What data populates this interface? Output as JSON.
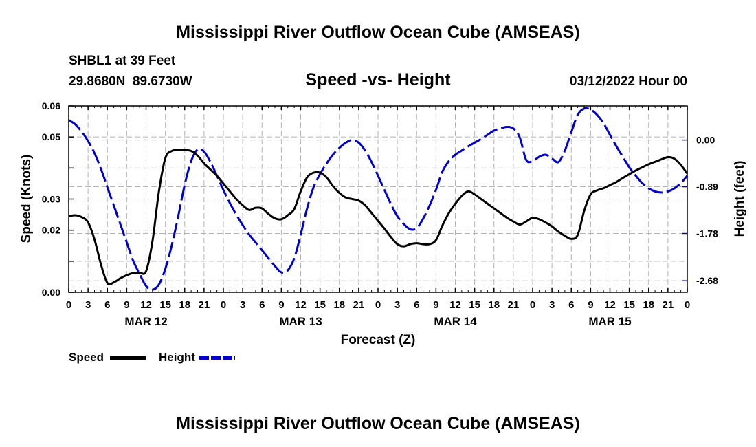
{
  "chart_data": {
    "type": "line",
    "title": "Mississippi River Outflow Ocean Cube (AMSEAS)",
    "footer_title": "Mississippi River Outflow Ocean Cube (AMSEAS)",
    "station": "SHBL1 at 39 Feet",
    "location": "29.8680N  89.6730W",
    "subtitle": "Speed -vs- Height",
    "run_label": "03/12/2022 Hour 00",
    "xlabel": "Forecast (Z)",
    "ylabel_left": "Speed (Knots)",
    "ylabel_right": "Height (feet)",
    "xlim": [
      0,
      96
    ],
    "ylim_left": [
      0.0,
      0.06
    ],
    "ylim_right": [
      -2.9,
      0.65
    ],
    "left_ticks": [
      {
        "v": 0.0,
        "label": "0.00"
      },
      {
        "v": 0.01,
        "label": ""
      },
      {
        "v": 0.02,
        "label": "0.02"
      },
      {
        "v": 0.03,
        "label": "0.03"
      },
      {
        "v": 0.04,
        "label": ""
      },
      {
        "v": 0.05,
        "label": "0.05"
      },
      {
        "v": 0.06,
        "label": "0.06"
      }
    ],
    "right_ticks": [
      {
        "v": 0.0,
        "label": "0.00"
      },
      {
        "v": -0.89,
        "label": "-0.89"
      },
      {
        "v": -1.78,
        "label": "-1.78"
      },
      {
        "v": -2.68,
        "label": "-2.68"
      }
    ],
    "x_tick_labels": [
      "0",
      "3",
      "6",
      "9",
      "12",
      "15",
      "18",
      "21",
      "0",
      "3",
      "6",
      "9",
      "12",
      "15",
      "18",
      "21",
      "0",
      "3",
      "6",
      "9",
      "12",
      "15",
      "18",
      "21",
      "0",
      "3",
      "6",
      "9",
      "12",
      "15",
      "18",
      "21",
      "0"
    ],
    "day_labels": [
      {
        "hour": 12,
        "label": "MAR 12"
      },
      {
        "hour": 36,
        "label": "MAR 13"
      },
      {
        "hour": 60,
        "label": "MAR 14"
      },
      {
        "hour": 84,
        "label": "MAR 15"
      }
    ],
    "grid": true,
    "series": [
      {
        "name": "Speed",
        "axis": "left",
        "color": "#000000",
        "style": "solid",
        "x": [
          0,
          1,
          2,
          3,
          4,
          5,
          6,
          7,
          8,
          9,
          10,
          11,
          12,
          13,
          14,
          15,
          16,
          17,
          18,
          19,
          20,
          21,
          22,
          23,
          24,
          25,
          26,
          27,
          28,
          29,
          30,
          31,
          32,
          33,
          34,
          35,
          36,
          37,
          38,
          39,
          40,
          41,
          42,
          43,
          44,
          45,
          46,
          47,
          48,
          49,
          50,
          51,
          52,
          53,
          54,
          55,
          56,
          57,
          58,
          59,
          60,
          61,
          62,
          63,
          64,
          65,
          66,
          67,
          68,
          69,
          70,
          71,
          72,
          73,
          74,
          75,
          76,
          77,
          78,
          79,
          80,
          81,
          82,
          83,
          84,
          85,
          86,
          87,
          88,
          89,
          90,
          91,
          92,
          93,
          94,
          95,
          96
        ],
        "values": [
          0.0245,
          0.0248,
          0.0242,
          0.0225,
          0.017,
          0.009,
          0.003,
          0.0032,
          0.0045,
          0.0055,
          0.0062,
          0.0063,
          0.0068,
          0.0165,
          0.0325,
          0.0432,
          0.0455,
          0.0458,
          0.0458,
          0.0455,
          0.044,
          0.0415,
          0.0395,
          0.0375,
          0.035,
          0.0325,
          0.03,
          0.028,
          0.0265,
          0.0272,
          0.027,
          0.0252,
          0.0238,
          0.0235,
          0.0248,
          0.0268,
          0.0325,
          0.037,
          0.0385,
          0.0385,
          0.037,
          0.0342,
          0.032,
          0.0305,
          0.03,
          0.0295,
          0.028,
          0.0255,
          0.023,
          0.0205,
          0.0178,
          0.0155,
          0.0148,
          0.0155,
          0.0158,
          0.0155,
          0.0155,
          0.0168,
          0.0215,
          0.0255,
          0.0285,
          0.031,
          0.0325,
          0.0315,
          0.03,
          0.0285,
          0.027,
          0.0255,
          0.024,
          0.0228,
          0.0218,
          0.0228,
          0.024,
          0.0235,
          0.0225,
          0.0212,
          0.0195,
          0.0182,
          0.0172,
          0.0185,
          0.0262,
          0.0315,
          0.0328,
          0.0335,
          0.0345,
          0.0355,
          0.0368,
          0.038,
          0.0392,
          0.0402,
          0.0412,
          0.042,
          0.0428,
          0.0435,
          0.043,
          0.041,
          0.0382
        ]
      },
      {
        "name": "Height",
        "axis": "right",
        "color": "#0000cc",
        "style": "dashed",
        "x": [
          0,
          1,
          2,
          3,
          4,
          5,
          6,
          7,
          8,
          9,
          10,
          11,
          12,
          13,
          14,
          15,
          16,
          17,
          18,
          19,
          20,
          21,
          22,
          23,
          24,
          25,
          26,
          27,
          28,
          29,
          30,
          31,
          32,
          33,
          34,
          35,
          36,
          37,
          38,
          39,
          40,
          41,
          42,
          43,
          44,
          45,
          46,
          47,
          48,
          49,
          50,
          51,
          52,
          53,
          54,
          55,
          56,
          57,
          58,
          59,
          60,
          61,
          62,
          63,
          64,
          65,
          66,
          67,
          68,
          69,
          70,
          71,
          72,
          73,
          74,
          75,
          76,
          77,
          78,
          79,
          80,
          81,
          82,
          83,
          84,
          85,
          86,
          87,
          88,
          89,
          90,
          91,
          92,
          93,
          94,
          95,
          96
        ],
        "values": [
          0.38,
          0.3,
          0.16,
          -0.02,
          -0.25,
          -0.55,
          -0.9,
          -1.25,
          -1.6,
          -1.95,
          -2.3,
          -2.55,
          -2.78,
          -2.85,
          -2.75,
          -2.45,
          -2.0,
          -1.45,
          -0.85,
          -0.4,
          -0.18,
          -0.22,
          -0.42,
          -0.68,
          -0.95,
          -1.2,
          -1.42,
          -1.62,
          -1.8,
          -1.95,
          -2.1,
          -2.25,
          -2.4,
          -2.52,
          -2.48,
          -2.25,
          -1.8,
          -1.3,
          -0.9,
          -0.65,
          -0.45,
          -0.28,
          -0.15,
          -0.05,
          0.0,
          -0.05,
          -0.2,
          -0.42,
          -0.68,
          -0.95,
          -1.22,
          -1.45,
          -1.6,
          -1.7,
          -1.68,
          -1.5,
          -1.25,
          -0.95,
          -0.6,
          -0.4,
          -0.28,
          -0.2,
          -0.12,
          -0.05,
          0.02,
          0.1,
          0.18,
          0.22,
          0.25,
          0.22,
          0.05,
          -0.38,
          -0.4,
          -0.32,
          -0.28,
          -0.35,
          -0.42,
          -0.2,
          0.15,
          0.48,
          0.6,
          0.58,
          0.48,
          0.32,
          0.1,
          -0.12,
          -0.32,
          -0.52,
          -0.68,
          -0.82,
          -0.92,
          -0.98,
          -1.0,
          -0.98,
          -0.92,
          -0.82,
          -0.68
        ]
      }
    ],
    "legend": [
      {
        "label": "Speed",
        "color": "#000000",
        "style": "solid"
      },
      {
        "label": "Height",
        "color": "#0000cc",
        "style": "dashed"
      }
    ]
  }
}
